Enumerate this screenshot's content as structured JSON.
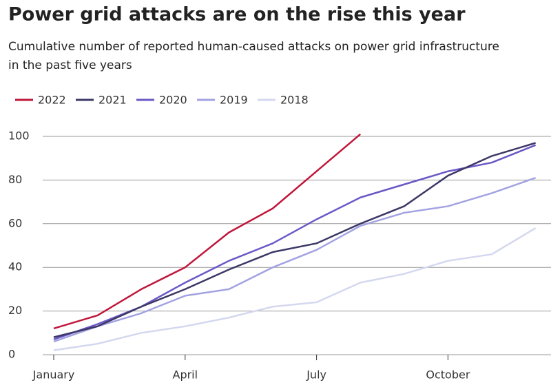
{
  "chart_data": {
    "type": "line",
    "title": "Power grid attacks are on the rise this year",
    "subtitle": "Cumulative number of reported human-caused attacks on power grid infrastructure in the past five years",
    "categories": [
      "January",
      null,
      null,
      "April",
      null,
      null,
      "July",
      null,
      null,
      "October",
      null,
      null
    ],
    "series": [
      {
        "name": "2022",
        "color": "#c0163a",
        "values": [
          12,
          18,
          30,
          40,
          56,
          67,
          84,
          101,
          null,
          null,
          null,
          null
        ]
      },
      {
        "name": "2021",
        "color": "#3c3866",
        "values": [
          8,
          13,
          22,
          30,
          39,
          47,
          51,
          60,
          68,
          82,
          91,
          97
        ]
      },
      {
        "name": "2020",
        "color": "#6b57c6",
        "values": [
          7,
          14,
          22,
          33,
          43,
          51,
          62,
          72,
          78,
          84,
          88,
          96
        ]
      },
      {
        "name": "2019",
        "color": "#a3a2e2",
        "values": [
          6,
          13,
          19,
          27,
          30,
          40,
          48,
          59,
          65,
          68,
          74,
          81
        ]
      },
      {
        "name": "2018",
        "color": "#d4d8ef",
        "values": [
          2,
          5,
          10,
          13,
          17,
          22,
          24,
          33,
          37,
          43,
          46,
          58
        ]
      }
    ],
    "ylim": [
      0,
      100
    ],
    "yticks": [
      0,
      20,
      40,
      60,
      80,
      100
    ],
    "grid": true,
    "legend": "top"
  }
}
